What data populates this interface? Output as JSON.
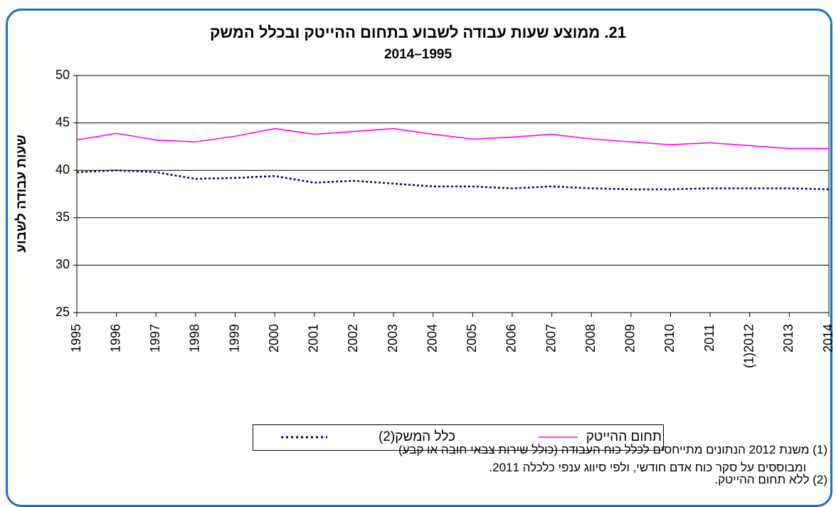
{
  "chart_data": {
    "type": "line",
    "title": "21. ממוצע שעות עבודה לשבוע בתחום ההייטק ובכלל המשק",
    "subtitle": "2014–1995",
    "y_label": "שעות עבודה לשבוע",
    "categories": [
      "1995",
      "1996",
      "1997",
      "1998",
      "1999",
      "2000",
      "2001",
      "2002",
      "2003",
      "2004",
      "2005",
      "2006",
      "2007",
      "2008",
      "2009",
      "2010",
      "2011",
      "(1)2012",
      "2013",
      "2014"
    ],
    "series": [
      {
        "name": "תחום ההייטק",
        "color": "#ff00ff",
        "style": "solid",
        "values": [
          43.2,
          43.9,
          43.2,
          43.0,
          43.6,
          44.4,
          43.8,
          44.1,
          44.4,
          43.8,
          43.3,
          43.5,
          43.8,
          43.3,
          43.0,
          42.7,
          42.9,
          42.6,
          42.3,
          42.3
        ]
      },
      {
        "name": "כלל המשק(2)",
        "color": "#000080",
        "style": "dotted",
        "values": [
          39.8,
          40.0,
          39.8,
          39.1,
          39.2,
          39.4,
          38.7,
          38.9,
          38.6,
          38.3,
          38.3,
          38.1,
          38.3,
          38.1,
          38.0,
          38.0,
          38.1,
          38.1,
          38.1,
          38.0
        ]
      }
    ],
    "ylim": [
      25,
      50
    ],
    "yticks": [
      25,
      30,
      35,
      40,
      45,
      50
    ],
    "grid": true,
    "legend": "bottom",
    "footnotes": [
      "(1) משנת 2012 הנתונים מתייחסים לכלל כוח העבודה (כולל שירות צבאי חובה או קבע)",
      "ומבוססים על סקר כוח אדם חודשי, ולפי סיווג ענפי כלכלה 2011.",
      "(2) ללא תחום ההייטק."
    ]
  }
}
